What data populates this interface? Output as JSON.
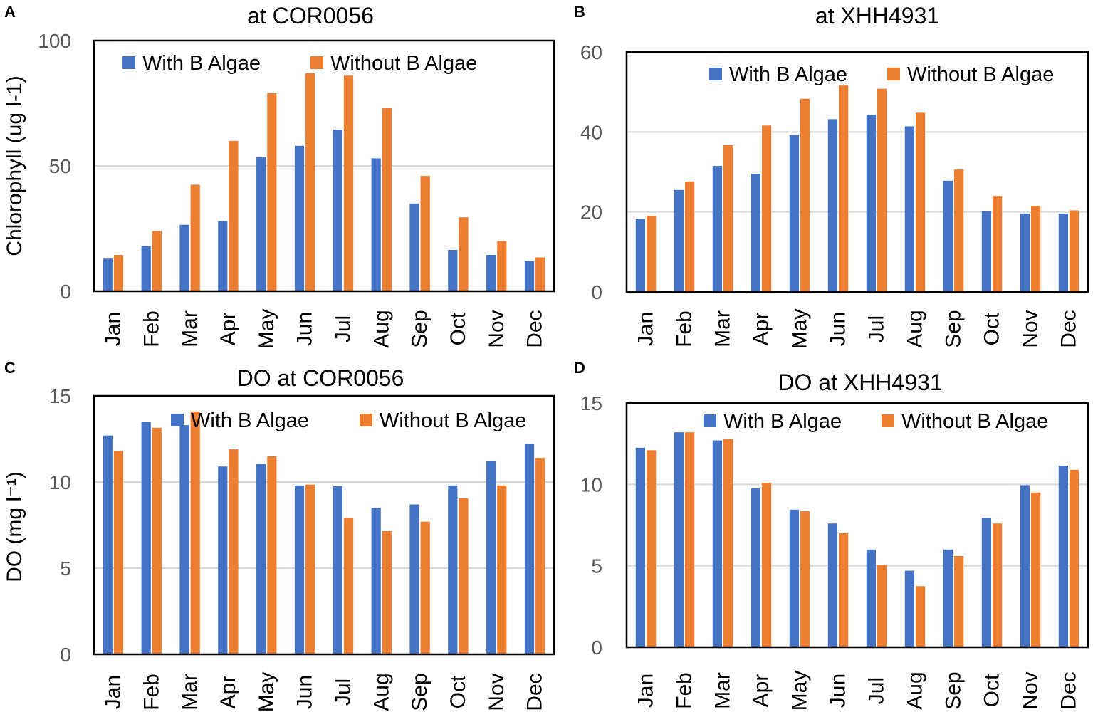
{
  "chart_data": [
    {
      "panel": "A",
      "type": "bar",
      "title": "at COR0056",
      "xlabel": "",
      "ylabel": "Chlorophyll (ug l-1)",
      "ylim": [
        0,
        100
      ],
      "yticks": [
        0,
        50,
        100
      ],
      "grid": true,
      "legend_position": "top",
      "categories": [
        "Jan",
        "Feb",
        "Mar",
        "Apr",
        "May",
        "Jun",
        "Jul",
        "Aug",
        "Sep",
        "Oct",
        "Nov",
        "Dec"
      ],
      "series": [
        {
          "name": "With B Algae",
          "values": [
            13,
            18,
            26.5,
            28,
            53.5,
            58,
            64.5,
            53,
            35,
            16.5,
            14.5,
            12
          ]
        },
        {
          "name": "Without B Algae",
          "values": [
            14.5,
            24,
            42.5,
            60,
            79,
            87,
            86,
            73,
            46,
            29.5,
            20,
            13.5
          ]
        }
      ]
    },
    {
      "panel": "B",
      "type": "bar",
      "title": "at XHH4931",
      "xlabel": "",
      "ylabel": "",
      "ylim": [
        0,
        60
      ],
      "yticks": [
        0,
        20,
        40,
        60
      ],
      "grid": true,
      "legend_position": "top",
      "categories": [
        "Jan",
        "Feb",
        "Mar",
        "Apr",
        "May",
        "Jun",
        "Jul",
        "Aug",
        "Sep",
        "Oct",
        "Nov",
        "Dec"
      ],
      "series": [
        {
          "name": "With B Algae",
          "values": [
            18.3,
            25.5,
            31.5,
            29.5,
            39.2,
            43.2,
            44.3,
            41.4,
            27.8,
            20.2,
            19.6,
            19.6
          ]
        },
        {
          "name": "Without B Algae",
          "values": [
            19,
            27.6,
            36.7,
            41.6,
            48.3,
            51.6,
            50.8,
            44.8,
            30.6,
            24,
            21.5,
            20.4
          ]
        }
      ]
    },
    {
      "panel": "C",
      "type": "bar",
      "title": "DO at COR0056",
      "xlabel": "",
      "ylabel": "DO (mg l⁻¹)",
      "ylim": [
        0,
        15
      ],
      "yticks": [
        0,
        5,
        10,
        15
      ],
      "grid": true,
      "legend_position": "top",
      "categories": [
        "Jan",
        "Feb",
        "Mar",
        "Apr",
        "May",
        "Jun",
        "Jul",
        "Aug",
        "Sep",
        "Oct",
        "Nov",
        "Dec"
      ],
      "series": [
        {
          "name": "With B Algae",
          "values": [
            12.7,
            13.5,
            13.3,
            10.9,
            11.05,
            9.8,
            9.75,
            8.5,
            8.7,
            9.8,
            11.2,
            12.2
          ]
        },
        {
          "name": "Without B Algae",
          "values": [
            11.8,
            13.15,
            14.1,
            11.9,
            11.5,
            9.85,
            7.9,
            7.15,
            7.7,
            9.05,
            9.8,
            11.4
          ]
        }
      ]
    },
    {
      "panel": "D",
      "type": "bar",
      "title": "DO at XHH4931",
      "xlabel": "",
      "ylabel": "",
      "ylim": [
        0,
        15
      ],
      "yticks": [
        0,
        5,
        10,
        15
      ],
      "grid": true,
      "legend_position": "top",
      "categories": [
        "Jan",
        "Feb",
        "Mar",
        "Apr",
        "May",
        "Jun",
        "Jul",
        "Aug",
        "Sep",
        "Oct",
        "Nov",
        "Dec"
      ],
      "series": [
        {
          "name": "With B Algae",
          "values": [
            12.25,
            13.2,
            12.7,
            9.75,
            8.45,
            7.6,
            6,
            4.7,
            6,
            7.95,
            9.95,
            11.15
          ]
        },
        {
          "name": "Without B Algae",
          "values": [
            12.1,
            13.2,
            12.8,
            10.1,
            8.35,
            7,
            5.05,
            3.75,
            5.6,
            7.6,
            9.5,
            10.9
          ]
        }
      ]
    }
  ],
  "colors": {
    "with": "#4472C4",
    "without": "#ED7D31",
    "grid": "#D9D9D9",
    "frame": "#000000"
  }
}
